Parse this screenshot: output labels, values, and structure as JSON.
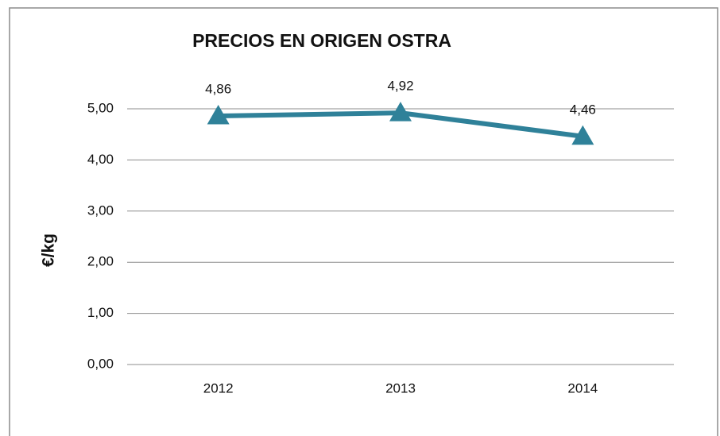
{
  "chart_data": {
    "type": "line",
    "title": "PRECIOS EN ORIGEN OSTRA",
    "y_label": "€/kg",
    "categories": [
      "2012",
      "2013",
      "2014"
    ],
    "series": [
      {
        "color": "#2f8199",
        "values": [
          4.86,
          4.92,
          4.46
        ],
        "value_labels": [
          "4,86",
          "4,92",
          "4,46"
        ]
      }
    ],
    "ylim": [
      0,
      5
    ],
    "yticks": [
      {
        "value": 0,
        "label": "0,00"
      },
      {
        "value": 1,
        "label": "1,00"
      },
      {
        "value": 2,
        "label": "2,00"
      },
      {
        "value": 3,
        "label": "3,00"
      },
      {
        "value": 4,
        "label": "4,00"
      },
      {
        "value": 5,
        "label": "5,00"
      }
    ],
    "grid": true,
    "marker": "triangle"
  }
}
